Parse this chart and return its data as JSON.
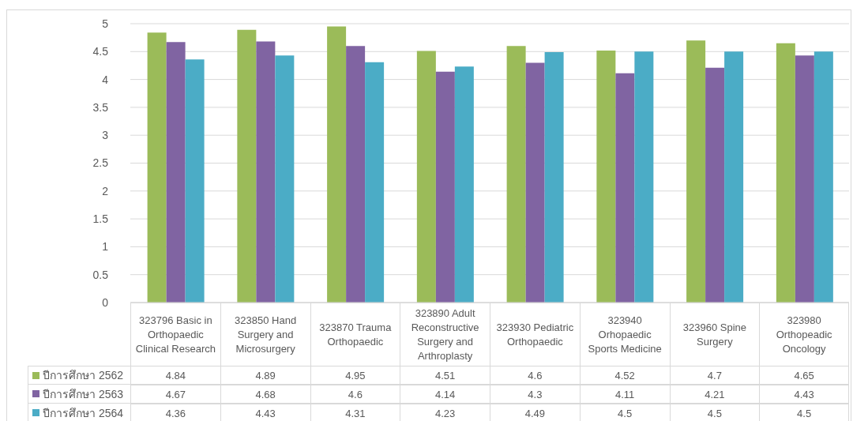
{
  "chart_data": {
    "type": "bar",
    "categories": [
      "323796 Basic in Orthopaedic Clinical Research",
      "323850 Hand Surgery and Microsurgery",
      "323870 Trauma Orthopaedic",
      "323890 Adult Reconstructive Surgery and Arthroplasty",
      "323930 Pediatric Orthopaedic",
      "323940 Orhopaedic Sports Medicine",
      "323960 Spine Surgery",
      "323980 Orthopeadic Oncology"
    ],
    "series": [
      {
        "name": "ปีการศึกษา 2562",
        "color": "#9bbb59",
        "values": [
          4.84,
          4.89,
          4.95,
          4.51,
          4.6,
          4.52,
          4.7,
          4.65
        ]
      },
      {
        "name": "ปีการศึกษา 2563",
        "color": "#8064a2",
        "values": [
          4.67,
          4.68,
          4.6,
          4.14,
          4.3,
          4.11,
          4.21,
          4.43
        ]
      },
      {
        "name": "ปีการศึกษา 2564",
        "color": "#4bacc6",
        "values": [
          4.36,
          4.43,
          4.31,
          4.23,
          4.49,
          4.5,
          4.5,
          4.5
        ]
      }
    ],
    "ylim": [
      0,
      5
    ],
    "yticks": [
      0,
      0.5,
      1,
      1.5,
      2,
      2.5,
      3,
      3.5,
      4,
      4.5,
      5
    ],
    "grid": "y",
    "legend": "bottom left",
    "data_labels": true
  }
}
